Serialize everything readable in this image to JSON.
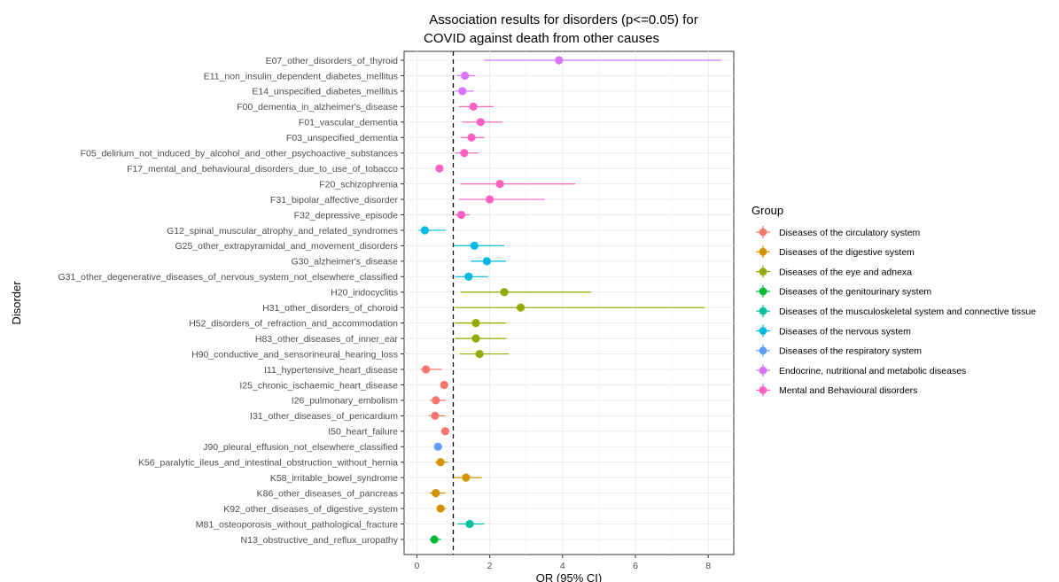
{
  "chart_data": {
    "type": "scatter",
    "title_lines": [
      "Association results for disorders (p<=0.05) for",
      "COVID against death from other causes"
    ],
    "xlabel": "OR (95% CI)",
    "ylabel": "Disorder",
    "xlim": [
      -0.35,
      8.7
    ],
    "xticks": [
      0,
      2,
      4,
      6,
      8
    ],
    "reference_line": 1,
    "grid": true,
    "legend_title": "Group",
    "legend_position": "right",
    "groups": [
      {
        "name": "Diseases of the circulatory system",
        "color": "#F8766D"
      },
      {
        "name": "Diseases of the digestive system",
        "color": "#D39200"
      },
      {
        "name": "Diseases of the eye and adnexa",
        "color": "#93AA00"
      },
      {
        "name": "Diseases of the genitourinary system",
        "color": "#00BA38"
      },
      {
        "name": "Diseases of the musculoskeletal system and connective tissue",
        "color": "#00C19F"
      },
      {
        "name": "Diseases of the nervous system",
        "color": "#00B9E3"
      },
      {
        "name": "Diseases of the respiratory system",
        "color": "#619CFF"
      },
      {
        "name": "Endocrine, nutritional and metabolic diseases",
        "color": "#DB72FB"
      },
      {
        "name": "Mental and Behavioural disorders",
        "color": "#FF61C3"
      }
    ],
    "rows": [
      {
        "label": "E07_other_disorders_of_thyroid",
        "group": 7,
        "or": 3.9,
        "lo": 1.85,
        "hi": 8.35
      },
      {
        "label": "E11_non_insulin_dependent_diabetes_mellitus",
        "group": 7,
        "or": 1.32,
        "lo": 1.1,
        "hi": 1.6
      },
      {
        "label": "E14_unspecified_diabetes_mellitus",
        "group": 7,
        "or": 1.25,
        "lo": 1.05,
        "hi": 1.55
      },
      {
        "label": "F00_dementia_in_alzheimer's_disease",
        "group": 8,
        "or": 1.55,
        "lo": 1.15,
        "hi": 2.1
      },
      {
        "label": "F01_vascular_dementia",
        "group": 8,
        "or": 1.75,
        "lo": 1.25,
        "hi": 2.35
      },
      {
        "label": "F03_unspecified_dementia",
        "group": 8,
        "or": 1.5,
        "lo": 1.2,
        "hi": 1.85
      },
      {
        "label": "F05_delirium_not_induced_by_alcohol_and_other_psychoactive_substances",
        "group": 8,
        "or": 1.3,
        "lo": 1.05,
        "hi": 1.68
      },
      {
        "label": "F17_mental_and_behavioural_disorders_due_to_use_of_tobacco",
        "group": 8,
        "or": 0.62,
        "lo": 0.52,
        "hi": 0.72
      },
      {
        "label": "F20_schizophrenia",
        "group": 8,
        "or": 2.28,
        "lo": 1.2,
        "hi": 4.35
      },
      {
        "label": "F31_bipolar_affective_disorder",
        "group": 8,
        "or": 2.0,
        "lo": 1.15,
        "hi": 3.5
      },
      {
        "label": "F32_depressive_episode",
        "group": 8,
        "or": 1.22,
        "lo": 1.05,
        "hi": 1.45
      },
      {
        "label": "G12_spinal_muscular_atrophy_and_related_syndromes",
        "group": 5,
        "or": 0.22,
        "lo": 0.05,
        "hi": 0.8
      },
      {
        "label": "G25_other_extrapyramidal_and_movement_disorders",
        "group": 5,
        "or": 1.58,
        "lo": 1.0,
        "hi": 2.4
      },
      {
        "label": "G30_alzheimer's_disease",
        "group": 5,
        "or": 1.92,
        "lo": 1.48,
        "hi": 2.45
      },
      {
        "label": "G31_other_degenerative_diseases_of_nervous_system_not_elsewhere_classified",
        "group": 5,
        "or": 1.42,
        "lo": 1.05,
        "hi": 1.95
      },
      {
        "label": "H20_iridocyclitis",
        "group": 2,
        "or": 2.4,
        "lo": 1.2,
        "hi": 4.78
      },
      {
        "label": "H31_other_disorders_of_choroid",
        "group": 2,
        "or": 2.85,
        "lo": 1.05,
        "hi": 7.9
      },
      {
        "label": "H52_disorders_of_refraction_and_accommodation",
        "group": 2,
        "or": 1.62,
        "lo": 1.05,
        "hi": 2.45
      },
      {
        "label": "H83_other_diseases_of_inner_ear",
        "group": 2,
        "or": 1.62,
        "lo": 1.05,
        "hi": 2.45
      },
      {
        "label": "H90_conductive_and_sensorineural_hearing_loss",
        "group": 2,
        "or": 1.72,
        "lo": 1.18,
        "hi": 2.52
      },
      {
        "label": "I11_hypertensive_heart_disease",
        "group": 0,
        "or": 0.25,
        "lo": 0.1,
        "hi": 0.68
      },
      {
        "label": "I25_chronic_ischaemic_heart_disease",
        "group": 0,
        "or": 0.75,
        "lo": 0.66,
        "hi": 0.85
      },
      {
        "label": "I26_pulmonary_embolism",
        "group": 0,
        "or": 0.52,
        "lo": 0.35,
        "hi": 0.78
      },
      {
        "label": "I31_other_diseases_of_pericardium",
        "group": 0,
        "or": 0.5,
        "lo": 0.32,
        "hi": 0.78
      },
      {
        "label": "I50_heart_failure",
        "group": 0,
        "or": 0.78,
        "lo": 0.68,
        "hi": 0.9
      },
      {
        "label": "J90_pleural_effusion_not_elsewhere_classified",
        "group": 6,
        "or": 0.58,
        "lo": 0.52,
        "hi": 0.66
      },
      {
        "label": "K56_paralytic_ileus_and_intestinal_obstruction_without_hernia",
        "group": 1,
        "or": 0.65,
        "lo": 0.5,
        "hi": 0.85
      },
      {
        "label": "K58_irritable_bowel_syndrome",
        "group": 1,
        "or": 1.35,
        "lo": 1.02,
        "hi": 1.78
      },
      {
        "label": "K86_other_diseases_of_pancreas",
        "group": 1,
        "or": 0.52,
        "lo": 0.35,
        "hi": 0.78
      },
      {
        "label": "K92_other_diseases_of_digestive_system",
        "group": 1,
        "or": 0.65,
        "lo": 0.55,
        "hi": 0.8
      },
      {
        "label": "M81_osteoporosis_without_pathological_fracture",
        "group": 4,
        "or": 1.45,
        "lo": 1.12,
        "hi": 1.85
      },
      {
        "label": "N13_obstructive_and_reflux_uropathy",
        "group": 3,
        "or": 0.48,
        "lo": 0.35,
        "hi": 0.66
      }
    ]
  }
}
